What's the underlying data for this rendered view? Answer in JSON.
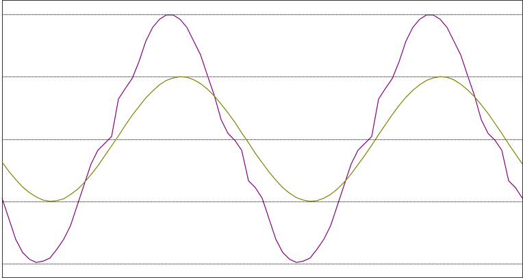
{
  "chart_data": {
    "type": "line",
    "x": [
      0,
      10,
      20,
      30,
      40,
      50,
      60,
      70,
      80,
      90,
      100,
      110,
      120,
      130,
      140,
      150,
      160,
      170,
      180,
      190,
      200,
      210,
      220,
      230,
      240,
      250,
      260,
      270,
      280,
      290,
      300,
      310,
      320,
      330,
      340,
      350,
      360,
      370,
      380,
      390,
      400,
      410,
      420,
      430,
      440,
      450,
      460,
      470,
      480,
      490,
      500,
      510,
      520,
      530,
      540,
      550,
      560,
      570,
      580,
      590,
      600,
      610,
      620,
      630,
      640,
      650,
      660,
      670,
      680,
      690,
      700,
      710,
      720,
      730,
      740,
      750,
      760
    ],
    "xlim": [
      0,
      761
    ],
    "ylim": [
      -0.2,
      4.2
    ],
    "yticks": [
      0,
      1,
      2,
      3,
      4
    ],
    "grid": true,
    "series": [
      {
        "color": "#800080",
        "values": [
          1.05,
          0.72,
          0.39,
          0.18,
          0.07,
          0.02,
          0.04,
          0.09,
          0.23,
          0.39,
          0.61,
          0.94,
          1.27,
          1.6,
          1.82,
          1.93,
          2.04,
          2.64,
          2.81,
          2.97,
          3.24,
          3.57,
          3.79,
          3.92,
          3.99,
          3.99,
          3.92,
          3.79,
          3.57,
          3.35,
          3.02,
          2.7,
          2.31,
          2.09,
          1.98,
          1.82,
          1.33,
          1.22,
          1.05,
          0.72,
          0.39,
          0.18,
          0.07,
          0.02,
          0.04,
          0.09,
          0.23,
          0.39,
          0.61,
          0.94,
          1.27,
          1.6,
          1.82,
          1.93,
          2.04,
          2.64,
          2.81,
          2.97,
          3.24,
          3.57,
          3.79,
          3.92,
          3.99,
          3.99,
          3.92,
          3.79,
          3.57,
          3.35,
          3.02,
          2.7,
          2.31,
          2.09,
          1.98,
          1.82,
          1.33,
          1.22,
          1.05
        ]
      },
      {
        "color": "#808000",
        "values": [
          1.63,
          1.48,
          1.35,
          1.23,
          1.14,
          1.07,
          1.02,
          1.0,
          1.01,
          1.04,
          1.11,
          1.19,
          1.3,
          1.43,
          1.57,
          1.73,
          1.89,
          2.05,
          2.22,
          2.38,
          2.52,
          2.66,
          2.77,
          2.87,
          2.94,
          2.98,
          3.0,
          2.99,
          2.95,
          2.89,
          2.8,
          2.69,
          2.56,
          2.42,
          2.27,
          2.1,
          1.94,
          1.77,
          1.62,
          1.47,
          1.34,
          1.22,
          1.13,
          1.06,
          1.02,
          1.0,
          1.01,
          1.05,
          1.11,
          1.2,
          1.31,
          1.44,
          1.59,
          1.74,
          1.9,
          2.07,
          2.23,
          2.39,
          2.54,
          2.67,
          2.78,
          2.87,
          2.94,
          2.98,
          3.0,
          2.99,
          2.95,
          2.88,
          2.79,
          2.68,
          2.55,
          2.41,
          2.25,
          2.09,
          1.92,
          1.76,
          1.6
        ]
      }
    ]
  }
}
